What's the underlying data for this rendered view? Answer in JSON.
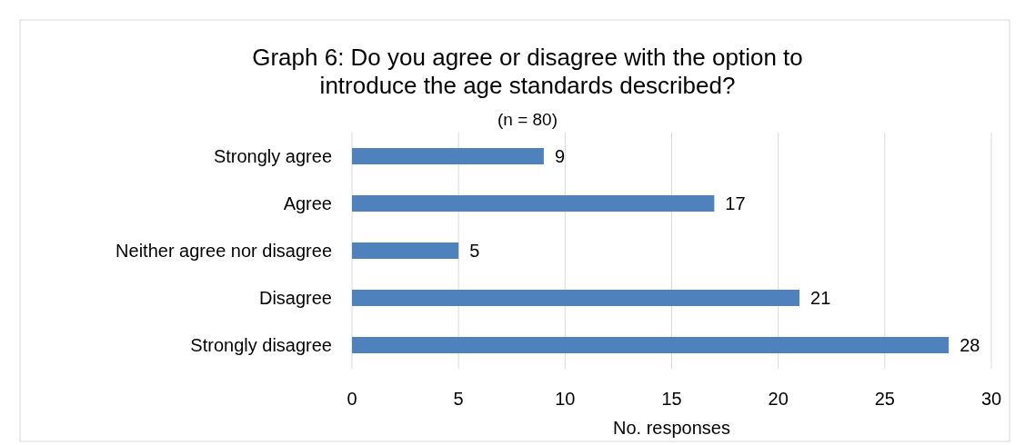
{
  "chart_data": {
    "type": "bar",
    "orientation": "horizontal",
    "title": "Graph 6: Do you agree or disagree with the option to introduce the age standards described?",
    "subtitle": "(n = 80)",
    "xlabel": "No. responses",
    "categories": [
      "Strongly agree",
      "Agree",
      "Neither agree nor disagree",
      "Disagree",
      "Strongly disagree"
    ],
    "values": [
      9,
      17,
      5,
      21,
      28
    ],
    "color": "#4f81bd",
    "xlim": [
      0,
      30
    ],
    "xticks": [
      0,
      5,
      10,
      15,
      20,
      25,
      30
    ],
    "grid": "x",
    "data_labels": true
  }
}
